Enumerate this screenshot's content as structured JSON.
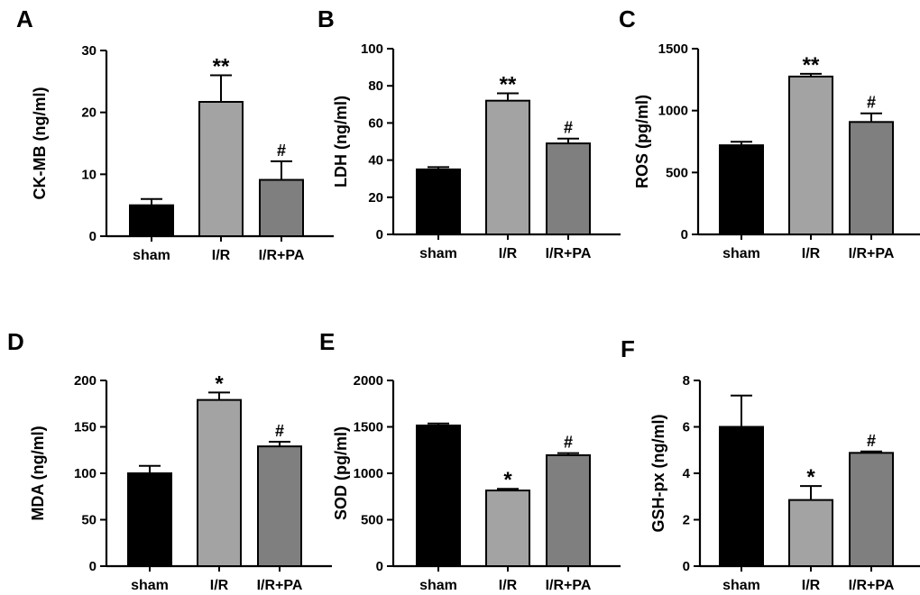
{
  "figure": {
    "type": "multi-panel bar chart"
  },
  "colors": {
    "sham": "#000000",
    "I/R": "#a3a3a3",
    "I/R+PA": "#7f7f7f"
  },
  "chart_data": [
    {
      "panel": "A",
      "type": "bar",
      "categories": [
        "sham",
        "I/R",
        "I/R+PA"
      ],
      "values": [
        5.0,
        21.7,
        9.1
      ],
      "errors": [
        1.0,
        4.3,
        3.0
      ],
      "annotations": [
        "",
        "**",
        "#"
      ],
      "ylabel": "CK-MB (ng/ml)",
      "ylim": [
        0,
        30
      ],
      "yticks": [
        0,
        10,
        20,
        30
      ],
      "ytick_labels": [
        "0",
        "10",
        "20",
        "30"
      ],
      "grid": false
    },
    {
      "panel": "B",
      "type": "bar",
      "categories": [
        "sham",
        "I/R",
        "I/R+PA"
      ],
      "values": [
        35,
        72,
        49
      ],
      "errors": [
        1.2,
        4.0,
        2.6
      ],
      "annotations": [
        "",
        "**",
        "#"
      ],
      "ylabel": "LDH (ng/ml)",
      "ylim": [
        0,
        100
      ],
      "yticks": [
        0,
        20,
        40,
        60,
        80,
        100
      ],
      "ytick_labels": [
        "0",
        "20",
        "40",
        "60",
        "80",
        "100"
      ],
      "grid": false
    },
    {
      "panel": "C",
      "type": "bar",
      "categories": [
        "sham",
        "I/R",
        "I/R+PA"
      ],
      "values": [
        720,
        1275,
        908
      ],
      "errors": [
        28,
        22,
        70
      ],
      "annotations": [
        "",
        "**",
        "#"
      ],
      "ylabel": "ROS (pg/ml)",
      "ylim": [
        0,
        1500
      ],
      "yticks": [
        0,
        500,
        1000,
        1500
      ],
      "ytick_labels": [
        "0",
        "500",
        "1000",
        "1500"
      ],
      "grid": false
    },
    {
      "panel": "D",
      "type": "bar",
      "categories": [
        "sham",
        "I/R",
        "I/R+PA"
      ],
      "values": [
        100,
        179,
        129
      ],
      "errors": [
        8,
        8,
        5
      ],
      "annotations": [
        "",
        "*",
        "#"
      ],
      "ylabel": "MDA (ng/ml)",
      "ylim": [
        0,
        200
      ],
      "yticks": [
        0,
        50,
        100,
        150,
        200
      ],
      "ytick_labels": [
        "0",
        "50",
        "100",
        "150",
        "200"
      ],
      "grid": false
    },
    {
      "panel": "E",
      "type": "bar",
      "categories": [
        "sham",
        "I/R",
        "I/R+PA"
      ],
      "values": [
        1515,
        815,
        1195
      ],
      "errors": [
        22,
        18,
        22
      ],
      "annotations": [
        "",
        "*",
        "#"
      ],
      "ylabel": "SOD (pg/ml)",
      "ylim": [
        0,
        2000
      ],
      "yticks": [
        0,
        500,
        1000,
        1500,
        2000
      ],
      "ytick_labels": [
        "0",
        "500",
        "1000",
        "1500",
        "2000"
      ],
      "grid": false
    },
    {
      "panel": "F",
      "type": "bar",
      "categories": [
        "sham",
        "I/R",
        "I/R+PA"
      ],
      "values": [
        6.0,
        2.85,
        4.88
      ],
      "errors": [
        1.35,
        0.6,
        0.06
      ],
      "annotations": [
        "",
        "*",
        "#"
      ],
      "ylabel": "GSH-px (ng/ml)",
      "ylim": [
        0,
        8
      ],
      "yticks": [
        0,
        2,
        4,
        6,
        8
      ],
      "ytick_labels": [
        "0",
        "2",
        "4",
        "6",
        "8"
      ],
      "grid": false
    }
  ]
}
